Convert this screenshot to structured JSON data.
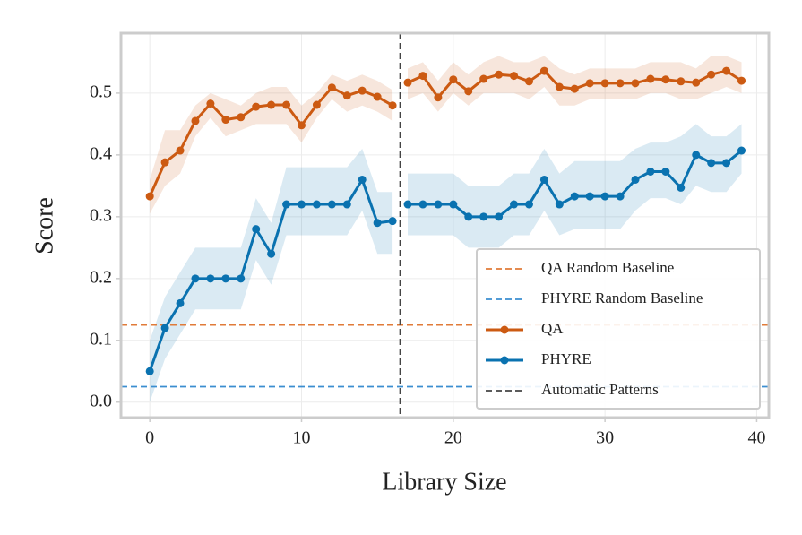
{
  "chart_data": {
    "type": "line",
    "xlabel": "Library Size",
    "ylabel": "Score",
    "x": [
      0,
      1,
      2,
      3,
      4,
      5,
      6,
      7,
      8,
      9,
      10,
      11,
      12,
      13,
      14,
      15,
      16,
      16.5,
      17,
      18,
      19,
      20,
      21,
      22,
      23,
      24,
      25,
      26,
      27,
      28,
      29,
      30,
      31,
      32,
      33,
      34,
      35,
      36,
      37,
      38,
      39
    ],
    "series": [
      {
        "name": "QA",
        "color": "#cc5a12",
        "values": [
          0.333,
          0.388,
          0.407,
          0.455,
          0.483,
          0.457,
          0.461,
          0.478,
          0.481,
          0.481,
          0.448,
          0.481,
          0.509,
          0.496,
          0.504,
          0.494,
          0.48,
          null,
          0.517,
          0.528,
          0.493,
          0.522,
          0.503,
          0.523,
          0.53,
          0.528,
          0.519,
          0.536,
          0.51,
          0.507,
          0.516,
          0.516,
          0.516,
          0.516,
          0.523,
          0.522,
          0.519,
          0.517,
          0.53,
          0.536,
          0.52
        ],
        "lower": [
          0.305,
          0.35,
          0.37,
          0.43,
          0.46,
          0.43,
          0.44,
          0.45,
          0.45,
          0.45,
          0.42,
          0.46,
          0.49,
          0.47,
          0.48,
          0.47,
          0.455,
          null,
          0.49,
          0.5,
          0.47,
          0.5,
          0.48,
          0.5,
          0.5,
          0.5,
          0.49,
          0.51,
          0.48,
          0.48,
          0.49,
          0.49,
          0.49,
          0.49,
          0.5,
          0.5,
          0.49,
          0.49,
          0.5,
          0.51,
          0.5
        ],
        "upper": [
          0.36,
          0.44,
          0.44,
          0.48,
          0.5,
          0.49,
          0.48,
          0.5,
          0.51,
          0.51,
          0.48,
          0.5,
          0.53,
          0.52,
          0.53,
          0.52,
          0.505,
          null,
          0.54,
          0.55,
          0.52,
          0.55,
          0.53,
          0.55,
          0.56,
          0.55,
          0.55,
          0.56,
          0.54,
          0.53,
          0.54,
          0.54,
          0.54,
          0.54,
          0.55,
          0.55,
          0.55,
          0.54,
          0.56,
          0.56,
          0.55
        ]
      },
      {
        "name": "PHYRE",
        "color": "#0a72b0",
        "values": [
          0.05,
          0.12,
          0.16,
          0.2,
          0.2,
          0.2,
          0.2,
          0.28,
          0.24,
          0.32,
          0.32,
          0.32,
          0.32,
          0.32,
          0.36,
          0.29,
          0.293,
          null,
          0.32,
          0.32,
          0.32,
          0.32,
          0.3,
          0.3,
          0.3,
          0.32,
          0.32,
          0.36,
          0.32,
          0.333,
          0.333,
          0.333,
          0.333,
          0.36,
          0.373,
          0.373,
          0.347,
          0.4,
          0.387,
          0.387,
          0.407
        ],
        "lower": [
          0.0,
          0.07,
          0.11,
          0.15,
          0.15,
          0.15,
          0.15,
          0.23,
          0.19,
          0.27,
          0.27,
          0.27,
          0.27,
          0.27,
          0.31,
          0.24,
          0.24,
          null,
          0.27,
          0.27,
          0.27,
          0.27,
          0.25,
          0.25,
          0.25,
          0.27,
          0.27,
          0.31,
          0.27,
          0.28,
          0.28,
          0.28,
          0.28,
          0.31,
          0.33,
          0.33,
          0.32,
          0.35,
          0.34,
          0.34,
          0.37
        ],
        "upper": [
          0.1,
          0.17,
          0.21,
          0.25,
          0.25,
          0.25,
          0.25,
          0.33,
          0.29,
          0.38,
          0.38,
          0.38,
          0.38,
          0.38,
          0.41,
          0.34,
          0.34,
          null,
          0.37,
          0.37,
          0.37,
          0.37,
          0.35,
          0.35,
          0.35,
          0.37,
          0.37,
          0.41,
          0.37,
          0.39,
          0.39,
          0.39,
          0.39,
          0.41,
          0.42,
          0.42,
          0.43,
          0.45,
          0.43,
          0.43,
          0.45
        ]
      }
    ],
    "baselines": [
      {
        "name": "QA Random Baseline",
        "value": 0.125,
        "color": "#e07b39"
      },
      {
        "name": "PHYRE Random Baseline",
        "value": 0.025,
        "color": "#3b8ed0"
      }
    ],
    "vline": {
      "name": "Automatic Patterns",
      "x": 16.5,
      "color": "#444444"
    },
    "xlim": [
      -1.9,
      40.8
    ],
    "ylim": [
      -0.025,
      0.597
    ],
    "xticks": [
      0,
      10,
      20,
      30,
      40
    ],
    "yticks": [
      {
        "value": 0,
        "label": "0.0"
      },
      0.1,
      0.2,
      0.3,
      0.4,
      0.5
    ],
    "grid": true,
    "legend": "lower right"
  }
}
